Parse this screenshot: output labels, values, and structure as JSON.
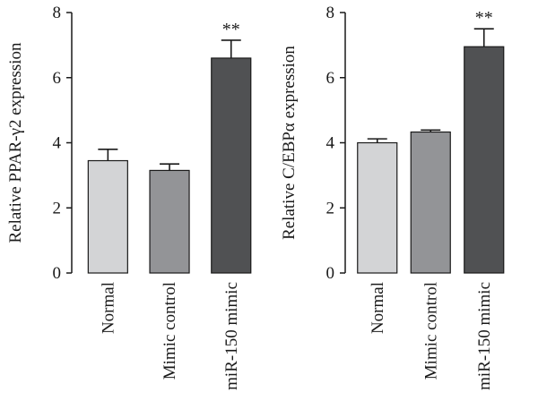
{
  "chart_data": [
    {
      "type": "bar",
      "ylabel": "Relative PPAR-γ2 expression",
      "categories": [
        "Normal",
        "Mimic control",
        "miR-150 mimic"
      ],
      "values": [
        3.45,
        3.15,
        6.6
      ],
      "errors": [
        0.35,
        0.2,
        0.55
      ],
      "significance": [
        "",
        "",
        "**"
      ],
      "bar_colors": [
        "#d3d4d6",
        "#939497",
        "#505153"
      ],
      "ylim": [
        0,
        8
      ],
      "yticks": [
        "0",
        "2",
        "4",
        "6",
        "8"
      ],
      "grid": false
    },
    {
      "type": "bar",
      "ylabel": "Relative C/EBPα expression",
      "categories": [
        "Normal",
        "Mimic control",
        "miR-150 mimic"
      ],
      "values": [
        4.0,
        4.33,
        6.95
      ],
      "errors": [
        0.12,
        0.06,
        0.55
      ],
      "significance": [
        "",
        "",
        "**"
      ],
      "bar_colors": [
        "#d3d4d6",
        "#939497",
        "#505153"
      ],
      "ylim": [
        0,
        8
      ],
      "yticks": [
        "0",
        "2",
        "4",
        "6",
        "8"
      ],
      "grid": false
    }
  ]
}
